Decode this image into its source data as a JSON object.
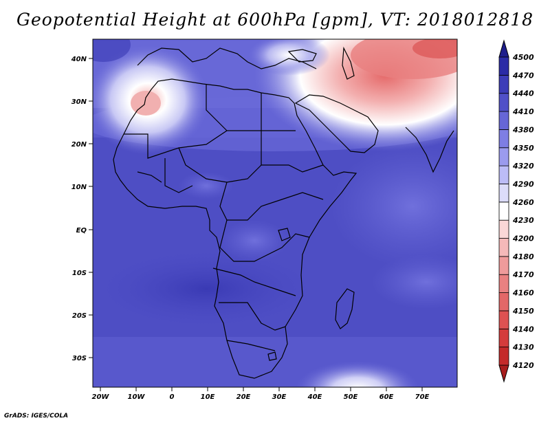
{
  "title": "Geopotential Height at 600hPa [gpm], VT: 2018012818",
  "credit": "GrADS: IGES/COLA",
  "map": {
    "lat_labels": [
      "40N",
      "30N",
      "20N",
      "10N",
      "EQ",
      "10S",
      "20S",
      "30S"
    ],
    "lon_labels": [
      "20W",
      "10W",
      "0",
      "10E",
      "20E",
      "30E",
      "40E",
      "50E",
      "60E",
      "70E"
    ],
    "lon_range": [
      -22,
      80
    ],
    "lat_range": [
      -37,
      45
    ]
  },
  "colorbar": {
    "levels": [
      "4120",
      "4130",
      "4140",
      "4150",
      "4160",
      "4170",
      "4180",
      "4200",
      "4230",
      "4260",
      "4290",
      "4320",
      "4350",
      "4380",
      "4410",
      "4440",
      "4470",
      "4500"
    ],
    "colors": [
      "#a81d1d",
      "#c42a2a",
      "#d43c3c",
      "#de5252",
      "#e36868",
      "#e98181",
      "#ef9b9b",
      "#f5b9b9",
      "#fad7d7",
      "#ffffff",
      "#dcdcfa",
      "#bcbcf7",
      "#9b9bee",
      "#7e7ee4",
      "#6666d6",
      "#5050c8",
      "#3c3cb8",
      "#2b2ba6",
      "#1e1e8c"
    ]
  },
  "colors": {
    "ocean_base": "#6868d8",
    "land_base": "#4d4dc6",
    "high_red": "#e57070",
    "white": "#ffffff"
  }
}
